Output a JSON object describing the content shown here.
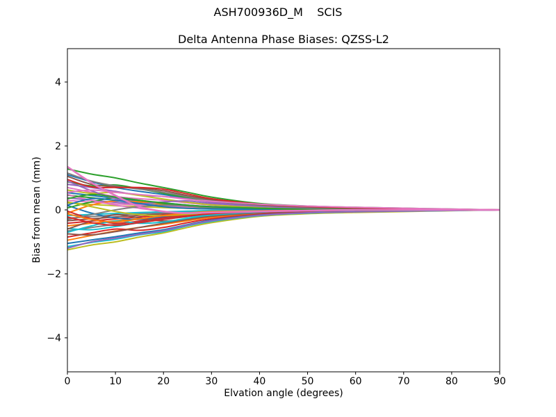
{
  "figure": {
    "suptitle": "ASH700936D_M    SCIS",
    "background": "#ffffff"
  },
  "chart_data": {
    "type": "line",
    "title": "Delta Antenna Phase Biases: QZSS-L2",
    "xlabel": "Elvation angle (degrees)",
    "ylabel": "Bias from mean (mm)",
    "xlim": [
      0,
      90
    ],
    "ylim": [
      -5.05,
      5.05
    ],
    "grid": false,
    "xticks": [
      0,
      10,
      20,
      30,
      40,
      50,
      60,
      70,
      80,
      90
    ],
    "xtick_labels": [
      "0",
      "10",
      "20",
      "30",
      "40",
      "50",
      "60",
      "70",
      "80",
      "90"
    ],
    "yticks": [
      -4,
      -2,
      0,
      2,
      4
    ],
    "ytick_labels": [
      "−4",
      "−2",
      "0",
      "2",
      "4"
    ],
    "spine_color": "#000000",
    "x": [
      0,
      5,
      10,
      15,
      20,
      25,
      30,
      40,
      50,
      60,
      75,
      90
    ],
    "series": [
      {
        "color": "#2ca02c",
        "width": 2,
        "y": [
          1.28,
          1.12,
          1.0,
          0.84,
          0.7,
          0.55,
          0.4,
          0.2,
          0.12,
          0.08,
          0.04,
          0
        ]
      },
      {
        "color": "#bcbd22",
        "width": 2,
        "y": [
          -1.25,
          -1.1,
          -1.0,
          -0.85,
          -0.72,
          -0.55,
          -0.4,
          -0.2,
          -0.12,
          -0.08,
          -0.04,
          0
        ]
      },
      {
        "color": "#1f77b4",
        "width": 2,
        "y": [
          1.1,
          0.88,
          0.7,
          0.58,
          0.48,
          0.36,
          0.26,
          0.13,
          0.07,
          0.04,
          0.02,
          0
        ]
      },
      {
        "color": "#ff7f0e",
        "width": 2,
        "y": [
          -0.95,
          -0.8,
          -0.66,
          -0.55,
          -0.45,
          -0.34,
          -0.24,
          -0.12,
          -0.06,
          -0.03,
          -0.01,
          0
        ]
      },
      {
        "color": "#17becf",
        "width": 2,
        "y": [
          -1.15,
          -1.02,
          -0.92,
          -0.78,
          -0.68,
          -0.5,
          -0.36,
          -0.18,
          -0.1,
          -0.06,
          -0.03,
          0
        ]
      },
      {
        "color": "#2ca02c",
        "width": 2,
        "y": [
          0.88,
          0.75,
          0.78,
          0.66,
          0.52,
          0.38,
          0.26,
          0.12,
          0.06,
          0.03,
          0.01,
          0
        ]
      },
      {
        "color": "#d62728",
        "width": 2,
        "y": [
          -0.85,
          -0.72,
          -0.6,
          -0.64,
          -0.55,
          -0.4,
          -0.28,
          -0.14,
          -0.08,
          -0.05,
          -0.02,
          0
        ]
      },
      {
        "color": "#1f77b4",
        "width": 2,
        "y": [
          -1.05,
          -0.94,
          -0.84,
          -0.72,
          -0.62,
          -0.46,
          -0.32,
          -0.16,
          -0.09,
          -0.05,
          -0.02,
          0
        ]
      },
      {
        "color": "#9467bd",
        "width": 2,
        "y": [
          0.8,
          0.7,
          0.58,
          0.46,
          0.42,
          0.35,
          0.24,
          0.11,
          0.05,
          0.03,
          0.01,
          0
        ]
      },
      {
        "color": "#8c564b",
        "width": 2,
        "y": [
          -0.75,
          -0.78,
          -0.68,
          -0.55,
          -0.42,
          -0.3,
          -0.2,
          -0.09,
          -0.04,
          -0.02,
          -0.01,
          0
        ]
      },
      {
        "color": "#9467bd",
        "width": 2,
        "y": [
          -1.2,
          -1.0,
          -0.88,
          -0.76,
          -0.65,
          -0.48,
          -0.34,
          -0.17,
          -0.09,
          -0.06,
          -0.03,
          0
        ]
      },
      {
        "color": "#e377c2",
        "width": 2,
        "y": [
          0.7,
          0.55,
          0.42,
          0.35,
          0.3,
          0.22,
          0.15,
          0.07,
          0.03,
          0.02,
          0.01,
          0
        ]
      },
      {
        "color": "#7f7f7f",
        "width": 2,
        "y": [
          -0.66,
          -0.55,
          -0.45,
          -0.36,
          -0.28,
          -0.2,
          -0.13,
          -0.06,
          -0.03,
          -0.02,
          -0.01,
          0
        ]
      },
      {
        "color": "#bcbd22",
        "width": 2,
        "y": [
          0.62,
          0.52,
          0.55,
          0.45,
          0.34,
          0.24,
          0.16,
          0.08,
          0.04,
          0.02,
          0.01,
          0
        ]
      },
      {
        "color": "#17becf",
        "width": 2,
        "y": [
          -0.58,
          -0.62,
          -0.52,
          -0.4,
          -0.3,
          -0.21,
          -0.14,
          -0.06,
          -0.03,
          -0.01,
          0,
          0
        ]
      },
      {
        "color": "#1f77b4",
        "width": 2,
        "y": [
          0.54,
          0.45,
          0.36,
          0.28,
          0.22,
          0.15,
          0.1,
          0.05,
          0.02,
          0.01,
          0,
          0
        ]
      },
      {
        "color": "#ff7f0e",
        "width": 2,
        "y": [
          -0.5,
          -0.42,
          -0.34,
          -0.27,
          -0.2,
          -0.14,
          -0.09,
          -0.04,
          -0.02,
          -0.01,
          0,
          0
        ]
      },
      {
        "color": "#2ca02c",
        "width": 2,
        "y": [
          0.46,
          0.38,
          0.3,
          0.24,
          0.18,
          0.12,
          0.08,
          0.04,
          0.02,
          0.01,
          0,
          0
        ]
      },
      {
        "color": "#d62728",
        "width": 2,
        "y": [
          -0.42,
          -0.35,
          -0.28,
          -0.22,
          -0.16,
          -0.11,
          -0.07,
          -0.03,
          -0.01,
          0,
          0,
          0
        ]
      },
      {
        "color": "#9467bd",
        "width": 2,
        "y": [
          0.38,
          0.3,
          0.24,
          0.18,
          0.14,
          0.09,
          0.06,
          0.03,
          0.01,
          0,
          0,
          0
        ]
      },
      {
        "color": "#8c564b",
        "width": 2,
        "y": [
          -0.34,
          -0.28,
          -0.22,
          -0.17,
          -0.12,
          -0.08,
          -0.05,
          -0.02,
          -0.01,
          0,
          0,
          0
        ]
      },
      {
        "color": "#e377c2",
        "width": 2,
        "y": [
          0.3,
          0.24,
          0.19,
          0.15,
          0.11,
          0.07,
          0.04,
          0.02,
          0.01,
          0,
          0,
          0
        ]
      },
      {
        "color": "#7f7f7f",
        "width": 2,
        "y": [
          -0.26,
          -0.21,
          -0.16,
          -0.12,
          -0.09,
          -0.06,
          -0.04,
          -0.02,
          -0.01,
          0,
          0,
          0
        ]
      },
      {
        "color": "#bcbd22",
        "width": 2,
        "y": [
          0.22,
          0.17,
          0.13,
          0.1,
          0.07,
          0.05,
          0.03,
          0.01,
          0,
          0,
          0,
          0
        ]
      },
      {
        "color": "#17becf",
        "width": 2,
        "y": [
          -0.18,
          -0.14,
          -0.11,
          -0.08,
          -0.06,
          -0.04,
          -0.02,
          -0.01,
          0,
          0,
          0,
          0
        ]
      },
      {
        "color": "#1f77b4",
        "width": 2,
        "y": [
          0.14,
          -0.1,
          -0.25,
          -0.3,
          -0.22,
          -0.15,
          -0.1,
          -0.05,
          -0.02,
          -0.01,
          0,
          0
        ]
      },
      {
        "color": "#ff7f0e",
        "width": 2,
        "y": [
          -0.1,
          0.15,
          0.28,
          0.25,
          0.18,
          0.12,
          0.08,
          0.04,
          0.02,
          0.01,
          0,
          0
        ]
      },
      {
        "color": "#2ca02c",
        "width": 2,
        "y": [
          0.06,
          0.25,
          0.38,
          0.3,
          0.2,
          0.12,
          0.07,
          0.03,
          0.01,
          0,
          0,
          0
        ]
      },
      {
        "color": "#d62728",
        "width": 2,
        "y": [
          -0.04,
          -0.28,
          -0.42,
          -0.35,
          -0.25,
          -0.16,
          -0.1,
          -0.05,
          -0.02,
          -0.01,
          0,
          0
        ]
      },
      {
        "color": "#9467bd",
        "width": 2,
        "y": [
          0.9,
          0.6,
          0.35,
          0.2,
          0.25,
          0.28,
          0.2,
          0.11,
          0.06,
          0.04,
          0.02,
          0
        ]
      },
      {
        "color": "#8c564b",
        "width": 2,
        "y": [
          -0.6,
          -0.35,
          -0.15,
          -0.25,
          -0.35,
          -0.28,
          -0.18,
          -0.09,
          -0.04,
          -0.02,
          -0.01,
          0
        ]
      },
      {
        "color": "#e377c2",
        "width": 2,
        "y": [
          0.48,
          0.3,
          0.15,
          0.05,
          -0.05,
          -0.1,
          -0.08,
          -0.05,
          -0.03,
          -0.02,
          -0.01,
          0
        ]
      },
      {
        "color": "#7f7f7f",
        "width": 2,
        "y": [
          -0.3,
          -0.15,
          0.0,
          0.1,
          0.15,
          0.12,
          0.08,
          0.05,
          0.03,
          0.02,
          0.01,
          0
        ]
      },
      {
        "color": "#bcbd22",
        "width": 2,
        "y": [
          0.25,
          0.1,
          -0.05,
          -0.15,
          -0.18,
          -0.14,
          -0.09,
          -0.05,
          -0.02,
          -0.01,
          0,
          0
        ]
      },
      {
        "color": "#17becf",
        "width": 2,
        "y": [
          -0.7,
          -0.5,
          -0.35,
          -0.42,
          -0.38,
          -0.26,
          -0.16,
          -0.07,
          -0.03,
          -0.02,
          -0.01,
          0
        ]
      },
      {
        "color": "#1f77b4",
        "width": 2,
        "y": [
          0.15,
          0.35,
          0.3,
          0.2,
          0.1,
          0.05,
          0.03,
          0.02,
          0.01,
          0,
          0,
          0
        ]
      },
      {
        "color": "#ff7f0e",
        "width": 2,
        "y": [
          -0.12,
          -0.3,
          -0.38,
          -0.28,
          -0.18,
          -0.1,
          -0.05,
          -0.03,
          -0.01,
          0,
          0,
          0
        ]
      },
      {
        "color": "#2ca02c",
        "width": 2,
        "y": [
          0.35,
          0.48,
          0.4,
          0.3,
          0.22,
          0.15,
          0.1,
          0.05,
          0.02,
          0.01,
          0,
          0
        ]
      },
      {
        "color": "#d62728",
        "width": 2,
        "y": [
          -0.22,
          -0.4,
          -0.48,
          -0.4,
          -0.3,
          -0.2,
          -0.12,
          -0.06,
          -0.03,
          -0.01,
          0,
          0
        ]
      },
      {
        "color": "#7f7f7f",
        "width": 2,
        "y": [
          1.15,
          0.9,
          0.75,
          0.65,
          0.55,
          0.42,
          0.3,
          0.15,
          0.09,
          0.06,
          0.03,
          0
        ]
      },
      {
        "color": "#8c564b",
        "width": 2,
        "y": [
          1.05,
          0.8,
          0.72,
          0.68,
          0.6,
          0.45,
          0.32,
          0.16,
          0.09,
          0.05,
          0.02,
          0
        ]
      },
      {
        "color": "#d62728",
        "width": 2,
        "y": [
          0.95,
          0.72,
          0.7,
          0.7,
          0.65,
          0.5,
          0.35,
          0.18,
          0.11,
          0.07,
          0.03,
          0
        ]
      },
      {
        "color": "#e377c2",
        "width": 2,
        "y": [
          0.55,
          0.62,
          0.55,
          0.48,
          0.42,
          0.33,
          0.27,
          0.18,
          0.12,
          0.08,
          0.04,
          0
        ]
      },
      {
        "color": "#e377c2",
        "width": 2.6,
        "y": [
          1.35,
          0.85,
          0.45,
          0.1,
          -0.05,
          -0.1,
          -0.08,
          -0.05,
          -0.02,
          0,
          0,
          0
        ]
      }
    ]
  }
}
